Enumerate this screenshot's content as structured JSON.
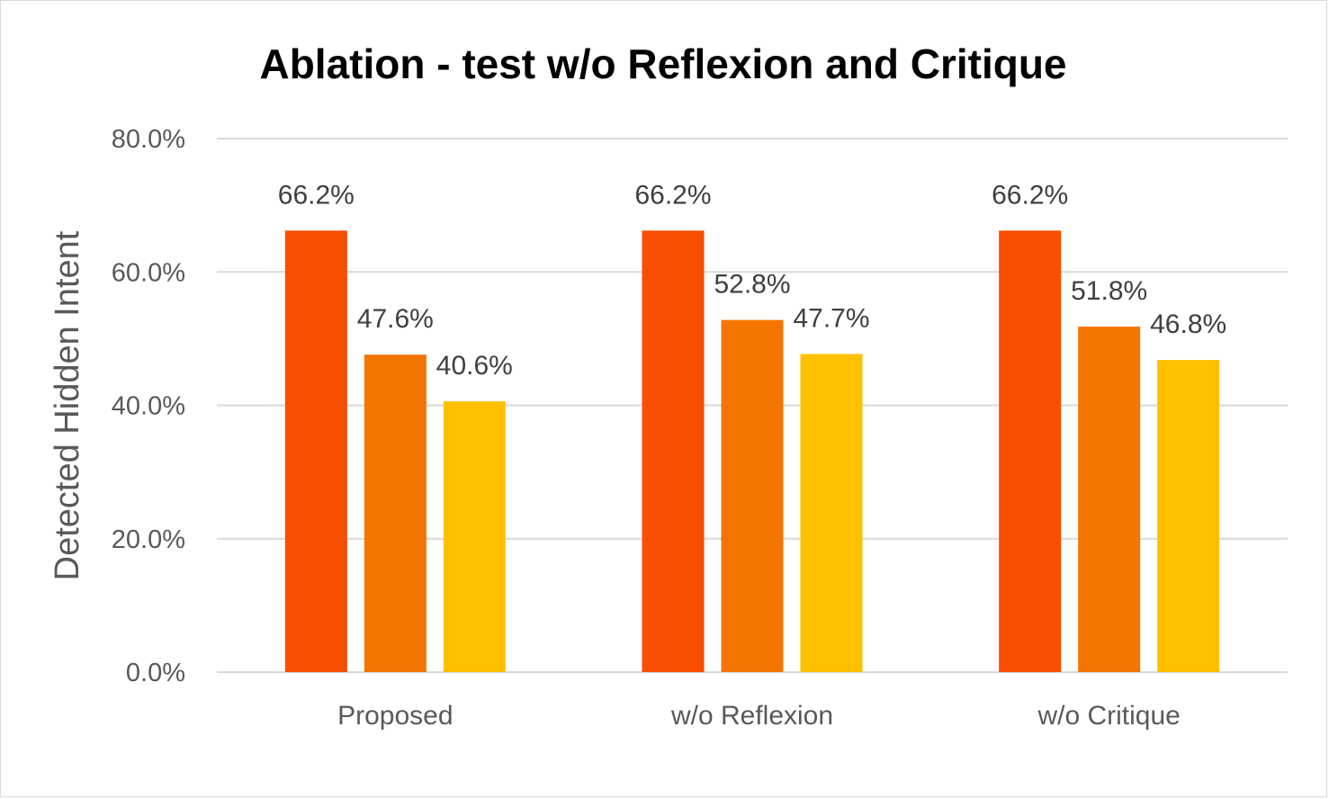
{
  "chart_data": {
    "type": "bar",
    "title": "Ablation - test w/o Reflexion and Critique",
    "xlabel": "",
    "ylabel": "Detected Hidden Intent",
    "categories": [
      "Proposed",
      "w/o Reflexion",
      "w/o Critique"
    ],
    "series": [
      {
        "values": [
          66.2,
          66.2,
          66.2
        ],
        "labels": [
          "66.2%",
          "66.2%",
          "66.2%"
        ],
        "color": "#f94d00"
      },
      {
        "values": [
          47.6,
          52.8,
          51.8
        ],
        "labels": [
          "47.6%",
          "52.8%",
          "51.8%"
        ],
        "color": "#f47400"
      },
      {
        "values": [
          40.6,
          47.7,
          46.8
        ],
        "labels": [
          "40.6%",
          "47.7%",
          "46.8%"
        ],
        "color": "#ffc000"
      }
    ],
    "ylim": [
      0,
      80
    ],
    "yticks": [
      0,
      20,
      40,
      60,
      80
    ],
    "ytick_labels": [
      "0.0%",
      "20.0%",
      "40.0%",
      "60.0%",
      "80.0%"
    ],
    "grid": true,
    "legend": "none"
  }
}
